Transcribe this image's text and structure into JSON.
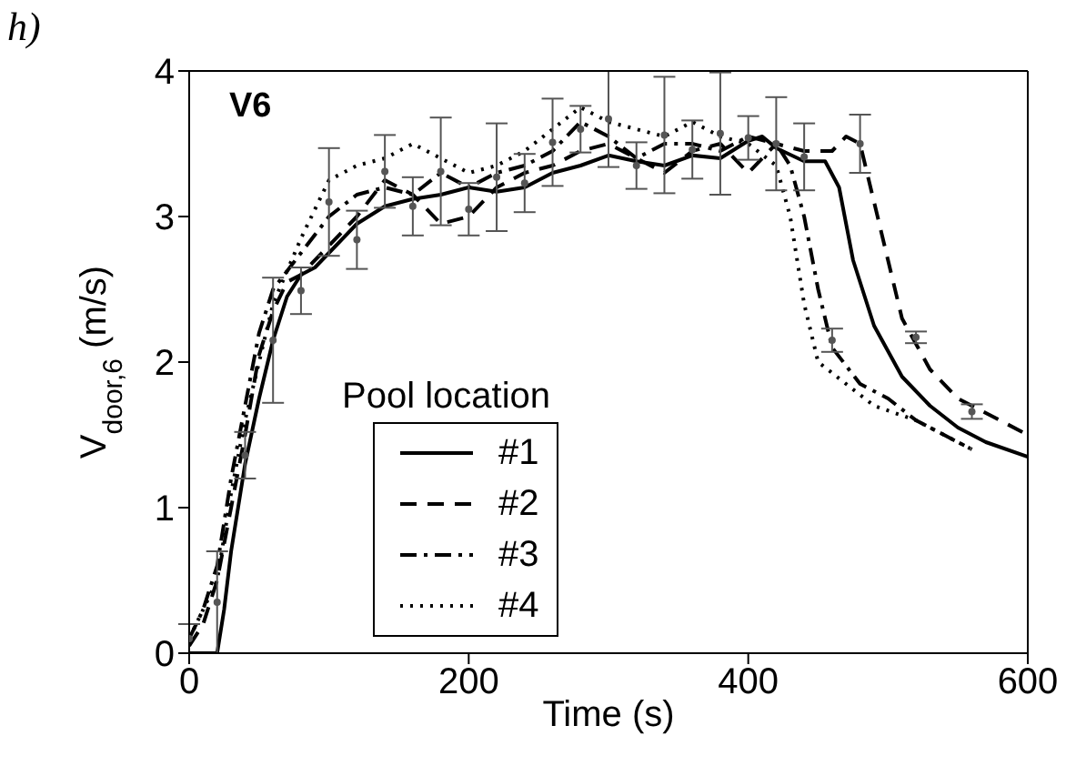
{
  "chart_data": {
    "type": "line",
    "xlabel": "Time (s)",
    "ylabel": "V$_{door,6}$ (m/s)",
    "legend_title": "Pool location",
    "annotations": [
      "h)",
      "V6"
    ],
    "xlim": [
      0,
      600
    ],
    "xticks": [
      0,
      200,
      400,
      600
    ],
    "ylim": [
      0,
      4
    ],
    "yticks": [
      0,
      1,
      2,
      3,
      4
    ],
    "grid": false,
    "legend": "left",
    "marker": "none",
    "series": [
      {
        "name": "#1",
        "color": "#000000",
        "line_style": "solid",
        "x": [
          0,
          20,
          25,
          30,
          40,
          50,
          60,
          70,
          80,
          90,
          100,
          120,
          140,
          160,
          180,
          200,
          220,
          240,
          260,
          280,
          300,
          320,
          340,
          360,
          380,
          400,
          410,
          420,
          440,
          455,
          465,
          475,
          490,
          510,
          530,
          550,
          570,
          600
        ],
        "values": [
          0,
          0,
          0.3,
          0.7,
          1.3,
          1.75,
          2.15,
          2.45,
          2.6,
          2.65,
          2.75,
          2.95,
          3.07,
          3.12,
          3.15,
          3.2,
          3.17,
          3.2,
          3.3,
          3.35,
          3.42,
          3.38,
          3.35,
          3.42,
          3.4,
          3.52,
          3.55,
          3.47,
          3.38,
          3.38,
          3.2,
          2.7,
          2.25,
          1.9,
          1.7,
          1.55,
          1.45,
          1.35
        ]
      },
      {
        "name": "#2",
        "color": "#000000",
        "line_style": "dashed",
        "x": [
          0,
          10,
          20,
          30,
          40,
          50,
          60,
          70,
          80,
          100,
          120,
          140,
          160,
          180,
          200,
          220,
          240,
          260,
          280,
          300,
          320,
          340,
          360,
          380,
          400,
          420,
          440,
          460,
          470,
          480,
          490,
          500,
          510,
          530,
          550,
          570,
          600
        ],
        "values": [
          0.05,
          0.2,
          0.5,
          1.0,
          1.5,
          2.05,
          2.35,
          2.55,
          2.6,
          2.8,
          3.0,
          3.25,
          3.15,
          2.95,
          3.0,
          3.2,
          3.3,
          3.35,
          3.45,
          3.5,
          3.4,
          3.3,
          3.45,
          3.5,
          3.3,
          3.5,
          3.45,
          3.45,
          3.55,
          3.5,
          3.1,
          2.7,
          2.3,
          1.95,
          1.75,
          1.65,
          1.5
        ]
      },
      {
        "name": "#3",
        "color": "#000000",
        "line_style": "dashdot",
        "x": [
          0,
          10,
          20,
          30,
          40,
          50,
          60,
          80,
          100,
          120,
          140,
          160,
          180,
          200,
          220,
          240,
          260,
          280,
          300,
          320,
          340,
          360,
          380,
          400,
          420,
          430,
          440,
          450,
          460,
          480,
          500,
          520,
          540,
          560
        ],
        "values": [
          0.1,
          0.3,
          0.6,
          1.2,
          1.7,
          2.2,
          2.5,
          2.75,
          3.0,
          3.15,
          3.2,
          3.15,
          3.3,
          3.2,
          3.3,
          3.35,
          3.45,
          3.65,
          3.55,
          3.4,
          3.5,
          3.5,
          3.45,
          3.55,
          3.5,
          3.35,
          3.0,
          2.5,
          2.1,
          1.85,
          1.75,
          1.6,
          1.5,
          1.4
        ]
      },
      {
        "name": "#4",
        "color": "#000000",
        "line_style": "dotted",
        "x": [
          0,
          20,
          30,
          40,
          60,
          80,
          100,
          120,
          140,
          160,
          180,
          200,
          220,
          240,
          260,
          280,
          300,
          320,
          340,
          360,
          380,
          400,
          420,
          430,
          440,
          450,
          470,
          490,
          520,
          560
        ],
        "values": [
          0.1,
          0.5,
          1.1,
          1.6,
          2.4,
          2.85,
          3.25,
          3.35,
          3.4,
          3.5,
          3.4,
          3.3,
          3.35,
          3.45,
          3.6,
          3.75,
          3.65,
          3.6,
          3.55,
          3.65,
          3.55,
          3.5,
          3.35,
          3.0,
          2.4,
          2.0,
          1.85,
          1.7,
          1.6,
          1.4
        ]
      },
      {
        "type": "scatter",
        "color": "#555555",
        "marker": "circle",
        "x": [
          0,
          20,
          40,
          60,
          80,
          100,
          120,
          140,
          160,
          180,
          200,
          220,
          240,
          260,
          280,
          300,
          320,
          340,
          360,
          380,
          400,
          420,
          440,
          460,
          480,
          520,
          560
        ],
        "values": [
          0.1,
          0.35,
          1.36,
          2.15,
          2.49,
          3.1,
          2.84,
          3.31,
          3.07,
          3.31,
          3.05,
          3.27,
          3.23,
          3.51,
          3.6,
          3.67,
          3.35,
          3.56,
          3.46,
          3.57,
          3.54,
          3.5,
          3.41,
          2.15,
          3.5,
          2.17,
          1.66
        ],
        "errors": [
          0.1,
          0.35,
          0.16,
          0.43,
          0.16,
          0.37,
          0.2,
          0.25,
          0.2,
          0.37,
          0.18,
          0.37,
          0.2,
          0.3,
          0.16,
          0.33,
          0.16,
          0.4,
          0.2,
          0.42,
          0.15,
          0.32,
          0.23,
          0.08,
          0.2,
          0.04,
          0.05
        ]
      }
    ]
  }
}
